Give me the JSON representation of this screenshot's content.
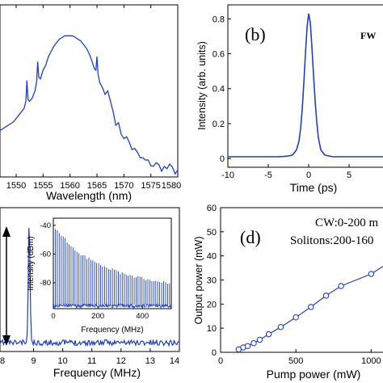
{
  "chart_data": [
    {
      "id": "a",
      "type": "line",
      "xlabel": "Wavelength (nm)",
      "xlim": [
        1547,
        1580
      ],
      "xticks": [
        1550,
        1555,
        1560,
        1565,
        1570,
        1575,
        1580
      ],
      "ylim": [
        0,
        1
      ],
      "series": [
        {
          "color": "#1f3fbf",
          "x": [
            1547.0,
            1547.5,
            1548.0,
            1548.5,
            1549.0,
            1549.5,
            1550.0,
            1550.5,
            1551.0,
            1551.5,
            1551.8,
            1552.0,
            1552.2,
            1552.5,
            1553.0,
            1553.5,
            1553.8,
            1554.0,
            1554.2,
            1554.5,
            1555.0,
            1555.5,
            1556.0,
            1556.5,
            1557.0,
            1557.5,
            1558.0,
            1558.5,
            1559.0,
            1559.5,
            1560.0,
            1560.5,
            1561.0,
            1561.5,
            1562.0,
            1562.5,
            1563.0,
            1563.5,
            1564.0,
            1564.5,
            1564.8,
            1565.0,
            1565.2,
            1565.5,
            1566.0,
            1566.5,
            1567.0,
            1567.5,
            1568.0,
            1568.5,
            1569.0,
            1569.5,
            1570.0,
            1570.5,
            1571.0,
            1571.5,
            1572.0,
            1572.5,
            1573.0,
            1573.5,
            1574.0,
            1574.5,
            1575.0,
            1575.5,
            1576.0,
            1576.5,
            1577.0,
            1577.5,
            1578.0,
            1578.5,
            1579.0,
            1579.5,
            1580.0
          ],
          "y": [
            0.27,
            0.28,
            0.29,
            0.3,
            0.31,
            0.32,
            0.34,
            0.36,
            0.38,
            0.4,
            0.44,
            0.56,
            0.45,
            0.44,
            0.46,
            0.5,
            0.55,
            0.67,
            0.58,
            0.57,
            0.62,
            0.65,
            0.7,
            0.73,
            0.76,
            0.78,
            0.8,
            0.81,
            0.82,
            0.82,
            0.82,
            0.82,
            0.81,
            0.8,
            0.79,
            0.77,
            0.75,
            0.72,
            0.68,
            0.63,
            0.62,
            0.7,
            0.6,
            0.55,
            0.52,
            0.48,
            0.5,
            0.44,
            0.38,
            0.33,
            0.29,
            0.26,
            0.24,
            0.22,
            0.2,
            0.17,
            0.15,
            0.13,
            0.11,
            0.1,
            0.09,
            0.08,
            0.08,
            0.07,
            0.07,
            0.06,
            0.06,
            0.05,
            0.05,
            0.05,
            0.04,
            0.04,
            0.04
          ]
        }
      ]
    },
    {
      "id": "b",
      "type": "line",
      "title": "(b)",
      "annotation": "FW",
      "xlabel": "Time (ps)",
      "ylabel": "Intensity (arb. units)",
      "xlim": [
        -10,
        10
      ],
      "ylim": [
        -0.05,
        0.88
      ],
      "xticks": [
        -10,
        -5,
        0,
        5,
        10
      ],
      "yticks": [
        0,
        0.2,
        0.4,
        0.6,
        0.8
      ],
      "series": [
        {
          "color": "#1f3fbf",
          "x": [
            -10,
            -9,
            -8,
            -7,
            -6,
            -5,
            -4,
            -3,
            -2.5,
            -2,
            -1.5,
            -1.2,
            -1,
            -0.8,
            -0.6,
            -0.4,
            -0.2,
            0,
            0.2,
            0.4,
            0.6,
            0.8,
            1,
            1.2,
            1.5,
            2,
            2.5,
            3,
            4,
            5,
            6,
            7,
            8,
            9,
            10
          ],
          "y": [
            0.01,
            0.01,
            0.01,
            0.01,
            0.01,
            0.01,
            0.01,
            0.012,
            0.015,
            0.02,
            0.05,
            0.1,
            0.17,
            0.28,
            0.43,
            0.6,
            0.75,
            0.83,
            0.78,
            0.64,
            0.48,
            0.33,
            0.21,
            0.12,
            0.05,
            0.02,
            0.015,
            0.01,
            0.01,
            0.01,
            0.01,
            0.01,
            0.01,
            0.01,
            0.01
          ]
        }
      ]
    },
    {
      "id": "c",
      "type": "line",
      "xlabel": "Frequency (MHz)",
      "xlim": [
        7.85,
        14
      ],
      "xticks": [
        9,
        10,
        11,
        12,
        13,
        14
      ],
      "xticklabels": [
        "9",
        "10",
        "11",
        "12",
        "13",
        "14"
      ],
      "edge_tick_label": "8",
      "ylim": [
        0,
        1
      ],
      "peak_x": 8.85,
      "inset": {
        "type": "line",
        "xlabel": "Frequency (MHz)",
        "ylabel": "Intensity (dBm)",
        "xlim": [
          0,
          530
        ],
        "ylim": [
          -98,
          -35
        ],
        "xticks": [
          0,
          200,
          400
        ],
        "yticks": [
          -40,
          -60,
          -80
        ],
        "spacing": 8.85,
        "envelope_top": {
          "x": [
            0,
            100,
            200,
            300,
            400,
            500,
            530
          ],
          "y": [
            -40,
            -58,
            -67,
            -73,
            -77,
            -80,
            -81
          ]
        },
        "floor": -96
      }
    },
    {
      "id": "d",
      "type": "line",
      "title": "(d)",
      "annotations": [
        "CW:0-200 m",
        "Solitons:200-160"
      ],
      "xlabel": "Pump power (mW)",
      "ylabel": "Output power (mW)",
      "xlim": [
        0,
        1100
      ],
      "ylim": [
        0,
        60
      ],
      "xticks": [
        0,
        500,
        1000
      ],
      "yticks": [
        0,
        10,
        20,
        30,
        40,
        50,
        60
      ],
      "series": [
        {
          "color": "#1f3fbf",
          "marker": "circle",
          "x": [
            120,
            150,
            180,
            220,
            260,
            320,
            400,
            500,
            600,
            700,
            800,
            1000,
            1100
          ],
          "y": [
            1.2,
            2.0,
            2.6,
            3.8,
            5.2,
            7.5,
            10.5,
            14.5,
            18.8,
            23.5,
            27.5,
            32.5,
            36.5
          ]
        }
      ]
    }
  ]
}
